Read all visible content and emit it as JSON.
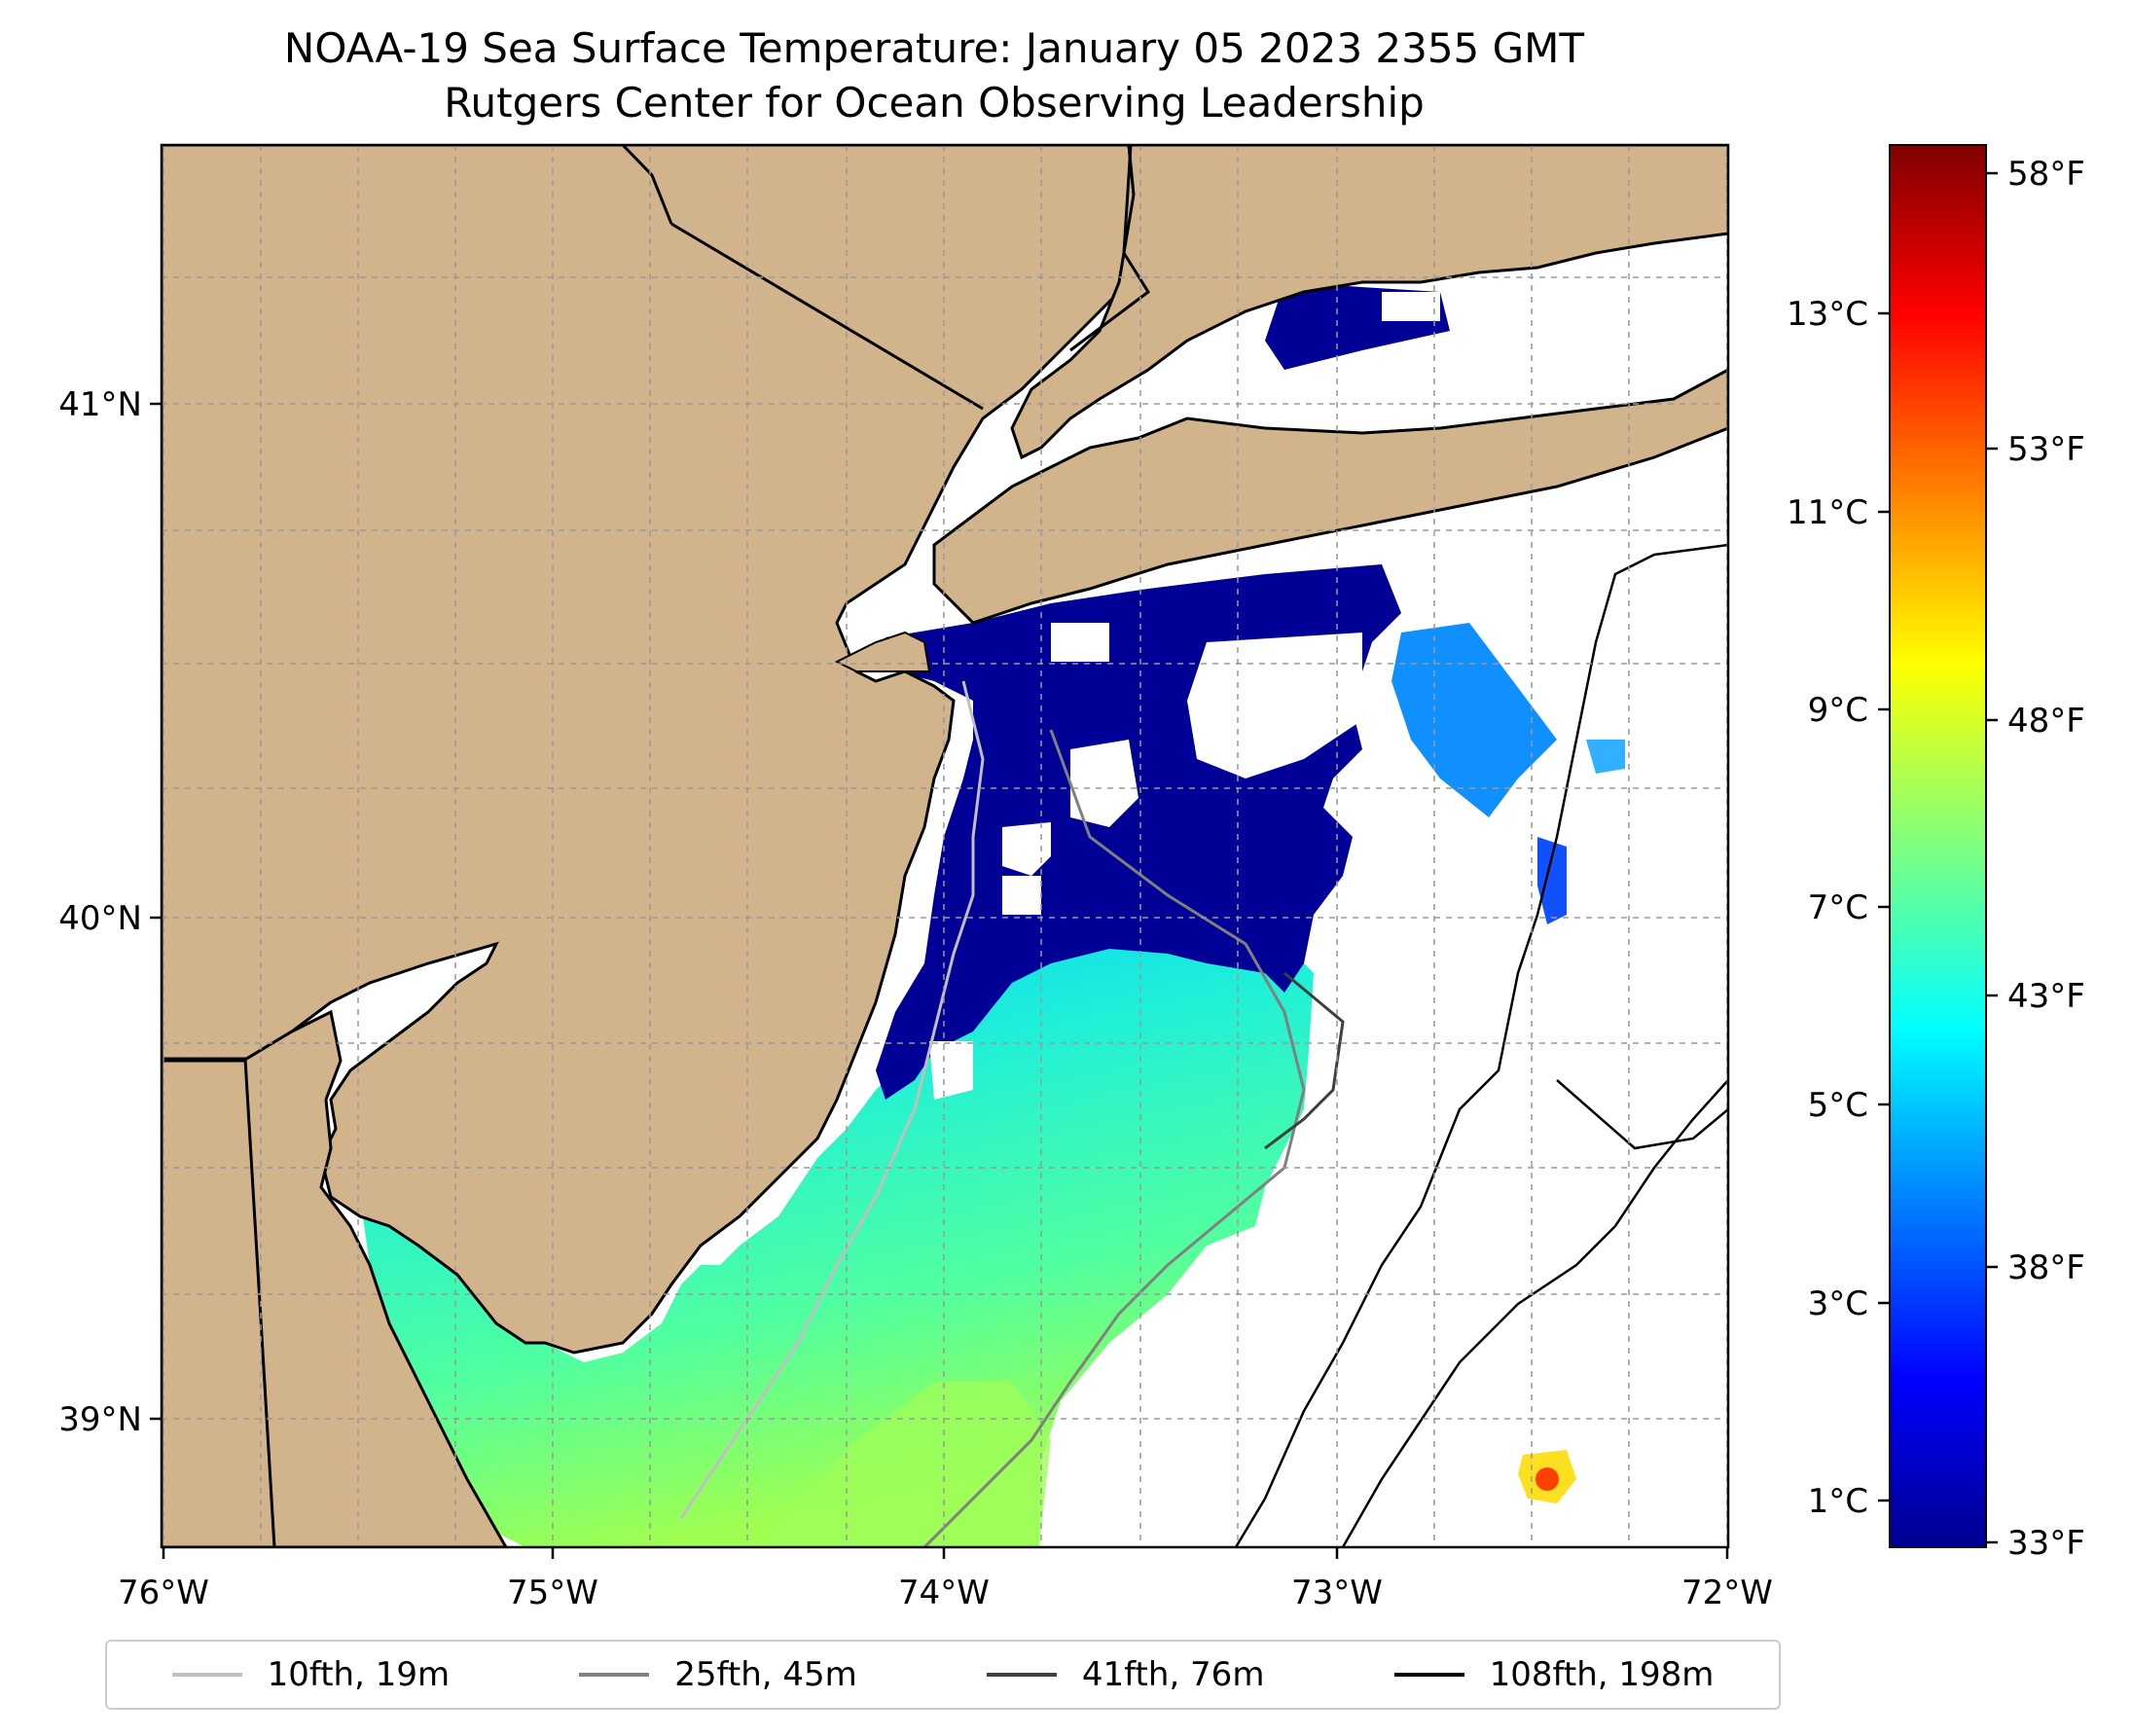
{
  "figure": {
    "title_line1": "NOAA-19 Sea Surface Temperature: January 05 2023 2355 GMT",
    "title_line2": "Rutgers Center for Ocean Observing Leadership"
  },
  "map": {
    "lon_ticks": [
      "76°W",
      "75°W",
      "74°W",
      "73°W",
      "72°W"
    ],
    "lat_ticks": [
      "41°N",
      "40°N",
      "39°N"
    ],
    "land_color": "#d2b48c",
    "ocean_no_data_color": "#ffffff",
    "gridlines": true
  },
  "colorbar": {
    "celsius_ticks": [
      "13°C",
      "11°C",
      "9°C",
      "7°C",
      "5°C",
      "3°C",
      "1°C"
    ],
    "fahrenheit_ticks": [
      "58°F",
      "53°F",
      "48°F",
      "43°F",
      "38°F",
      "33°F"
    ],
    "colormap": "jet"
  },
  "legend": {
    "items": [
      {
        "label": "10fth, 19m",
        "color": "#c0c0c0"
      },
      {
        "label": "25fth, 45m",
        "color": "#808080"
      },
      {
        "label": "41fth, 76m",
        "color": "#404040"
      },
      {
        "label": "108fth, 198m",
        "color": "#000000"
      }
    ]
  }
}
